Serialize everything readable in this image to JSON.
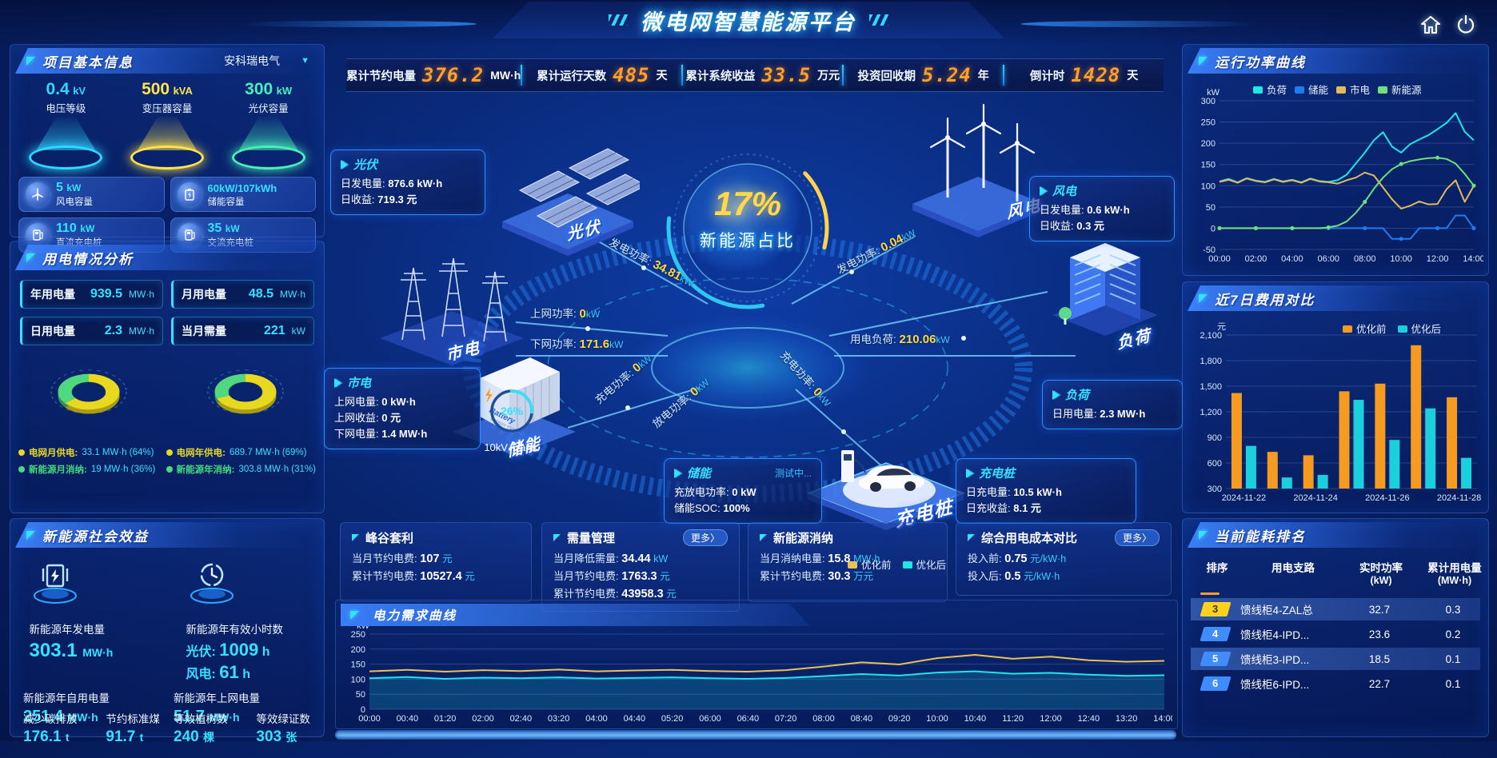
{
  "header": {
    "title": "微电网智慧能源平台"
  },
  "topStats": [
    {
      "label": "累计节约电量",
      "value": "376.2",
      "unit": "MW·h"
    },
    {
      "label": "累计运行天数",
      "value": "485",
      "unit": "天"
    },
    {
      "label": "累计系统收益",
      "value": "33.5",
      "unit": "万元"
    },
    {
      "label": "投资回收期",
      "value": "5.24",
      "unit": "年"
    },
    {
      "label": "倒计时",
      "value": "1428",
      "unit": "天"
    }
  ],
  "projectPanel": {
    "title": "项目基本信息",
    "selector": "安科瑞电气",
    "cones": [
      {
        "value": "0.4",
        "unit": "kV",
        "label": "电压等级",
        "color": "#2fd8ff"
      },
      {
        "value": "500",
        "unit": "kVA",
        "label": "变压器容量",
        "color": "#ffe34d"
      },
      {
        "value": "300",
        "unit": "kW",
        "label": "光伏容量",
        "color": "#49f0b9"
      }
    ],
    "cards": [
      {
        "value": "5",
        "unit": "kW",
        "label": "风电容量"
      },
      {
        "value": "60kW/107kWh",
        "unit": "",
        "label": "储能容量"
      },
      {
        "value": "110",
        "unit": "kW",
        "label": "直流充电桩"
      },
      {
        "value": "35",
        "unit": "kW",
        "label": "交流充电桩"
      }
    ]
  },
  "usagePanel": {
    "title": "用电情况分析",
    "stats": [
      {
        "label": "年用电量",
        "value": "939.5",
        "unit": "MW·h"
      },
      {
        "label": "月用电量",
        "value": "48.5",
        "unit": "MW·h"
      },
      {
        "label": "日用电量",
        "value": "2.3",
        "unit": "MW·h"
      },
      {
        "label": "当月需量",
        "value": "221",
        "unit": "kW"
      }
    ]
  },
  "benefitPanel": {
    "title": "新能源社会效益",
    "item1": {
      "label": "新能源年发电量",
      "value": "303.1",
      "unit": "MW·h"
    },
    "item2": {
      "label": "新能源年有效小时数",
      "line1": {
        "label": "光伏:",
        "value": "1009",
        "unit": "h"
      },
      "line2": {
        "label": "风电:",
        "value": "61",
        "unit": "h"
      }
    },
    "subItems": [
      {
        "label": "新能源年自用电量",
        "value": "251.4",
        "unit": "MW·h"
      },
      {
        "label": "新能源年上网电量",
        "value": "51.7",
        "unit": "MW·h"
      }
    ],
    "ecoItems": [
      {
        "label": "减少碳排放",
        "value": "176.1",
        "unit": "t"
      },
      {
        "label": "节约标准煤",
        "value": "91.7",
        "unit": "t"
      },
      {
        "label": "等效植树数",
        "value": "240",
        "unit": "棵"
      },
      {
        "label": "等效绿证数",
        "value": "303",
        "unit": "张"
      }
    ]
  },
  "center": {
    "sphere": {
      "value": "17%",
      "label": "新能源占比"
    },
    "gauge": {
      "value": "26%",
      "label": "10kV Trans."
    },
    "nodeLabels": {
      "pv": "光伏",
      "wind": "风电",
      "grid": "市电",
      "storage": "储能",
      "ev": "充电桩",
      "load": "负荷"
    },
    "batteryText": "Battery",
    "batterySub": "ENERGY STORAGE",
    "flows": [
      {
        "label": "发电功率:",
        "value": "34.81",
        "unit": "kW"
      },
      {
        "label": "发电功率:",
        "value": "0.04",
        "unit": "kW"
      },
      {
        "label": "上网功率:",
        "value": "0",
        "unit": "kW"
      },
      {
        "label": "下网功率:",
        "value": "171.6",
        "unit": "kW"
      },
      {
        "label": "用电负荷:",
        "value": "210.06",
        "unit": "kW"
      },
      {
        "label": "充电功率:",
        "value": "0",
        "unit": "kW"
      },
      {
        "label": "放电功率:",
        "value": "0",
        "unit": "kW"
      },
      {
        "label": "充电功率:",
        "value": "0",
        "unit": "kW"
      }
    ],
    "tips": {
      "pv": {
        "title": "光伏",
        "rows": [
          {
            "label": "日发电量:",
            "value": "876.6 kW·h"
          },
          {
            "label": "日收益:",
            "value": "719.3 元"
          }
        ]
      },
      "wind": {
        "title": "风电",
        "rows": [
          {
            "label": "日发电量:",
            "value": "0.6 kW·h"
          },
          {
            "label": "日收益:",
            "value": "0.3 元"
          }
        ]
      },
      "grid": {
        "title": "市电",
        "rows": [
          {
            "label": "上网电量:",
            "value": "0 kW·h"
          },
          {
            "label": "上网收益:",
            "value": "0 元"
          },
          {
            "label": "下网电量:",
            "value": "1.4 MW·h"
          }
        ]
      },
      "load": {
        "title": "负荷",
        "rows": [
          {
            "label": "日用电量:",
            "value": "2.3 MW·h"
          }
        ]
      },
      "storage": {
        "title": "储能",
        "status": "测试中...",
        "rows": [
          {
            "label": "充放电功率:",
            "value": "0 kW"
          },
          {
            "label": "储能SOC:",
            "value": "100%"
          }
        ]
      },
      "ev": {
        "title": "充电桩",
        "rows": [
          {
            "label": "日充电量:",
            "value": "10.5 kW·h"
          },
          {
            "label": "日充收益:",
            "value": "8.1 元"
          }
        ]
      }
    }
  },
  "bottomCards": [
    {
      "title": "峰谷套利",
      "rows": [
        {
          "label": "当月节约电费:",
          "value": "107",
          "unit": "元"
        },
        {
          "label": "累计节约电费:",
          "value": "10527.4",
          "unit": "元"
        }
      ]
    },
    {
      "title": "需量管理",
      "more": "更多〉",
      "rows": [
        {
          "label": "当月降低需量:",
          "value": "34.44",
          "unit": "kW"
        },
        {
          "label": "当月节约电费:",
          "value": "1763.3",
          "unit": "元"
        },
        {
          "label": "累计节约电费:",
          "value": "43958.3",
          "unit": "元"
        }
      ]
    },
    {
      "title": "新能源消纳",
      "rows": [
        {
          "label": "当月消纳电量:",
          "value": "15.8",
          "unit": "MW·h"
        },
        {
          "label": "累计节约电费:",
          "value": "30.3",
          "unit": "万元"
        }
      ]
    },
    {
      "title": "综合用电成本对比",
      "more": "更多〉",
      "rows": [
        {
          "label": "投入前:",
          "value": "0.75",
          "unit": "元/kW·h"
        },
        {
          "label": "投入后:",
          "value": "0.5",
          "unit": "元/kW·h"
        }
      ]
    }
  ],
  "rankPanel": {
    "title": "当前能耗排名",
    "headers": [
      {
        "l1": "排序",
        "l2": ""
      },
      {
        "l1": "用电支路",
        "l2": ""
      },
      {
        "l1": "实时功率",
        "l2": "(kW)"
      },
      {
        "l1": "累计用电量",
        "l2": "(MW·h)"
      }
    ],
    "rows": [
      {
        "rank": "3",
        "branch": "馈线柜4-ZAL总",
        "power": "32.7",
        "energy": "0.3"
      },
      {
        "rank": "4",
        "branch": "馈线柜4-IPD...",
        "power": "23.6",
        "energy": "0.2"
      },
      {
        "rank": "5",
        "branch": "馈线柜3-IPD...",
        "power": "18.5",
        "energy": "0.1"
      },
      {
        "rank": "6",
        "branch": "馈线柜6-IPD...",
        "power": "22.7",
        "energy": "0.1"
      }
    ]
  },
  "chart_data": [
    {
      "id": "runChart",
      "type": "line",
      "title": "运行功率曲线",
      "ylabel": "kW",
      "ylim": [
        -50,
        300
      ],
      "yticks": [
        -50,
        0,
        50,
        100,
        150,
        200,
        250,
        300
      ],
      "x_hours_range": [
        0,
        14
      ],
      "xtick_labels": [
        "00:00",
        "02:00",
        "04:00",
        "06:00",
        "08:00",
        "10:00",
        "12:00",
        "14:00"
      ],
      "legend_position": "top",
      "series": [
        {
          "name": "负荷",
          "color": "#1ee7e7",
          "values": [
            110,
            116,
            108,
            118,
            112,
            109,
            116,
            110,
            114,
            108,
            117,
            111,
            109,
            113,
            126,
            152,
            178,
            207,
            226,
            192,
            178,
            198,
            209,
            219,
            233,
            248,
            271,
            227,
            207
          ]
        },
        {
          "name": "储能",
          "color": "#1f7bf0",
          "markers": true,
          "values": [
            0,
            0,
            0,
            0,
            0,
            0,
            0,
            0,
            0,
            0,
            0,
            0,
            0,
            0,
            0,
            0,
            0,
            0,
            0,
            -25,
            -25,
            -25,
            0,
            0,
            0,
            0,
            30,
            30,
            0
          ]
        },
        {
          "name": "市电",
          "color": "#e3b95e",
          "values": [
            109,
            114,
            107,
            117,
            111,
            108,
            115,
            109,
            113,
            107,
            116,
            110,
            108,
            105,
            113,
            119,
            131,
            124,
            96,
            68,
            46,
            53,
            63,
            56,
            57,
            92,
            113,
            62,
            100
          ]
        },
        {
          "name": "新能源",
          "color": "#6fe07a",
          "markers": true,
          "values": [
            0,
            0,
            0,
            0,
            0,
            0,
            0,
            0,
            0,
            0,
            0,
            0,
            2,
            6,
            16,
            36,
            62,
            93,
            119,
            139,
            151,
            158,
            162,
            165,
            166,
            163,
            152,
            128,
            100
          ]
        }
      ]
    },
    {
      "id": "feeChart",
      "type": "bar",
      "title": "近7日费用对比",
      "ylabel": "元",
      "ylim": [
        300,
        2100
      ],
      "yticks": [
        300,
        600,
        900,
        1200,
        1500,
        1800,
        2100
      ],
      "ytick_labels": [
        "300",
        "600",
        "900",
        "1,200",
        "1,500",
        "1,800",
        "2,100"
      ],
      "categories": [
        "2024-11-22",
        "2024-11-23",
        "2024-11-24",
        "2024-11-25",
        "2024-11-26",
        "2024-11-27",
        "2024-11-28"
      ],
      "shown_idx": [
        0,
        2,
        4,
        6
      ],
      "series": [
        {
          "name": "优化前",
          "color": "#f59b22",
          "values": [
            1420,
            730,
            690,
            1440,
            1530,
            1980,
            1370
          ]
        },
        {
          "name": "优化后",
          "color": "#1bd0dc",
          "values": [
            800,
            430,
            460,
            1340,
            870,
            1240,
            660
          ]
        }
      ]
    },
    {
      "id": "demandChart",
      "type": "line",
      "title": "电力需求曲线",
      "ylabel": "kW",
      "ylim": [
        0,
        250
      ],
      "yticks": [
        0,
        50,
        100,
        150,
        200,
        250
      ],
      "xtick_labels": [
        "00:00",
        "00:40",
        "01:20",
        "02:00",
        "02:40",
        "03:20",
        "04:00",
        "04:40",
        "05:20",
        "06:00",
        "06:40",
        "07:20",
        "08:00",
        "08:40",
        "09:20",
        "10:00",
        "10:40",
        "11:20",
        "12:00",
        "12:40",
        "13:20",
        "14:00"
      ],
      "series": [
        {
          "name": "优化前",
          "color": "#e8c254",
          "values": [
            126,
            131,
            125,
            130,
            127,
            132,
            126,
            129,
            131,
            127,
            125,
            130,
            142,
            156,
            149,
            170,
            181,
            168,
            175,
            163,
            158,
            161
          ]
        },
        {
          "name": "优化后",
          "color": "#1ee7e7",
          "area": true,
          "values": [
            103,
            107,
            101,
            105,
            103,
            106,
            102,
            104,
            106,
            103,
            101,
            104,
            110,
            117,
            112,
            122,
            126,
            118,
            121,
            115,
            111,
            113
          ]
        }
      ]
    },
    {
      "id": "donutMonth",
      "type": "pie",
      "slices": [
        {
          "name": "电网月供电:",
          "value_text": "33.1 MW·h (64%)",
          "pct": 64,
          "color": "#e8d820",
          "color_dark": "#a89c10"
        },
        {
          "name": "新能源月消纳:",
          "value_text": "19 MW·h (36%)",
          "pct": 36,
          "color": "#4fd87f",
          "color_dark": "#2f9156"
        }
      ]
    },
    {
      "id": "donutYear",
      "type": "pie",
      "slices": [
        {
          "name": "电网年供电:",
          "value_text": "689.7 MW·h (69%)",
          "pct": 69,
          "color": "#e8d820",
          "color_dark": "#a89c10"
        },
        {
          "name": "新能源年消纳:",
          "value_text": "303.8 MW·h (31%)",
          "pct": 31,
          "color": "#4fd87f",
          "color_dark": "#2f9156"
        }
      ]
    }
  ]
}
